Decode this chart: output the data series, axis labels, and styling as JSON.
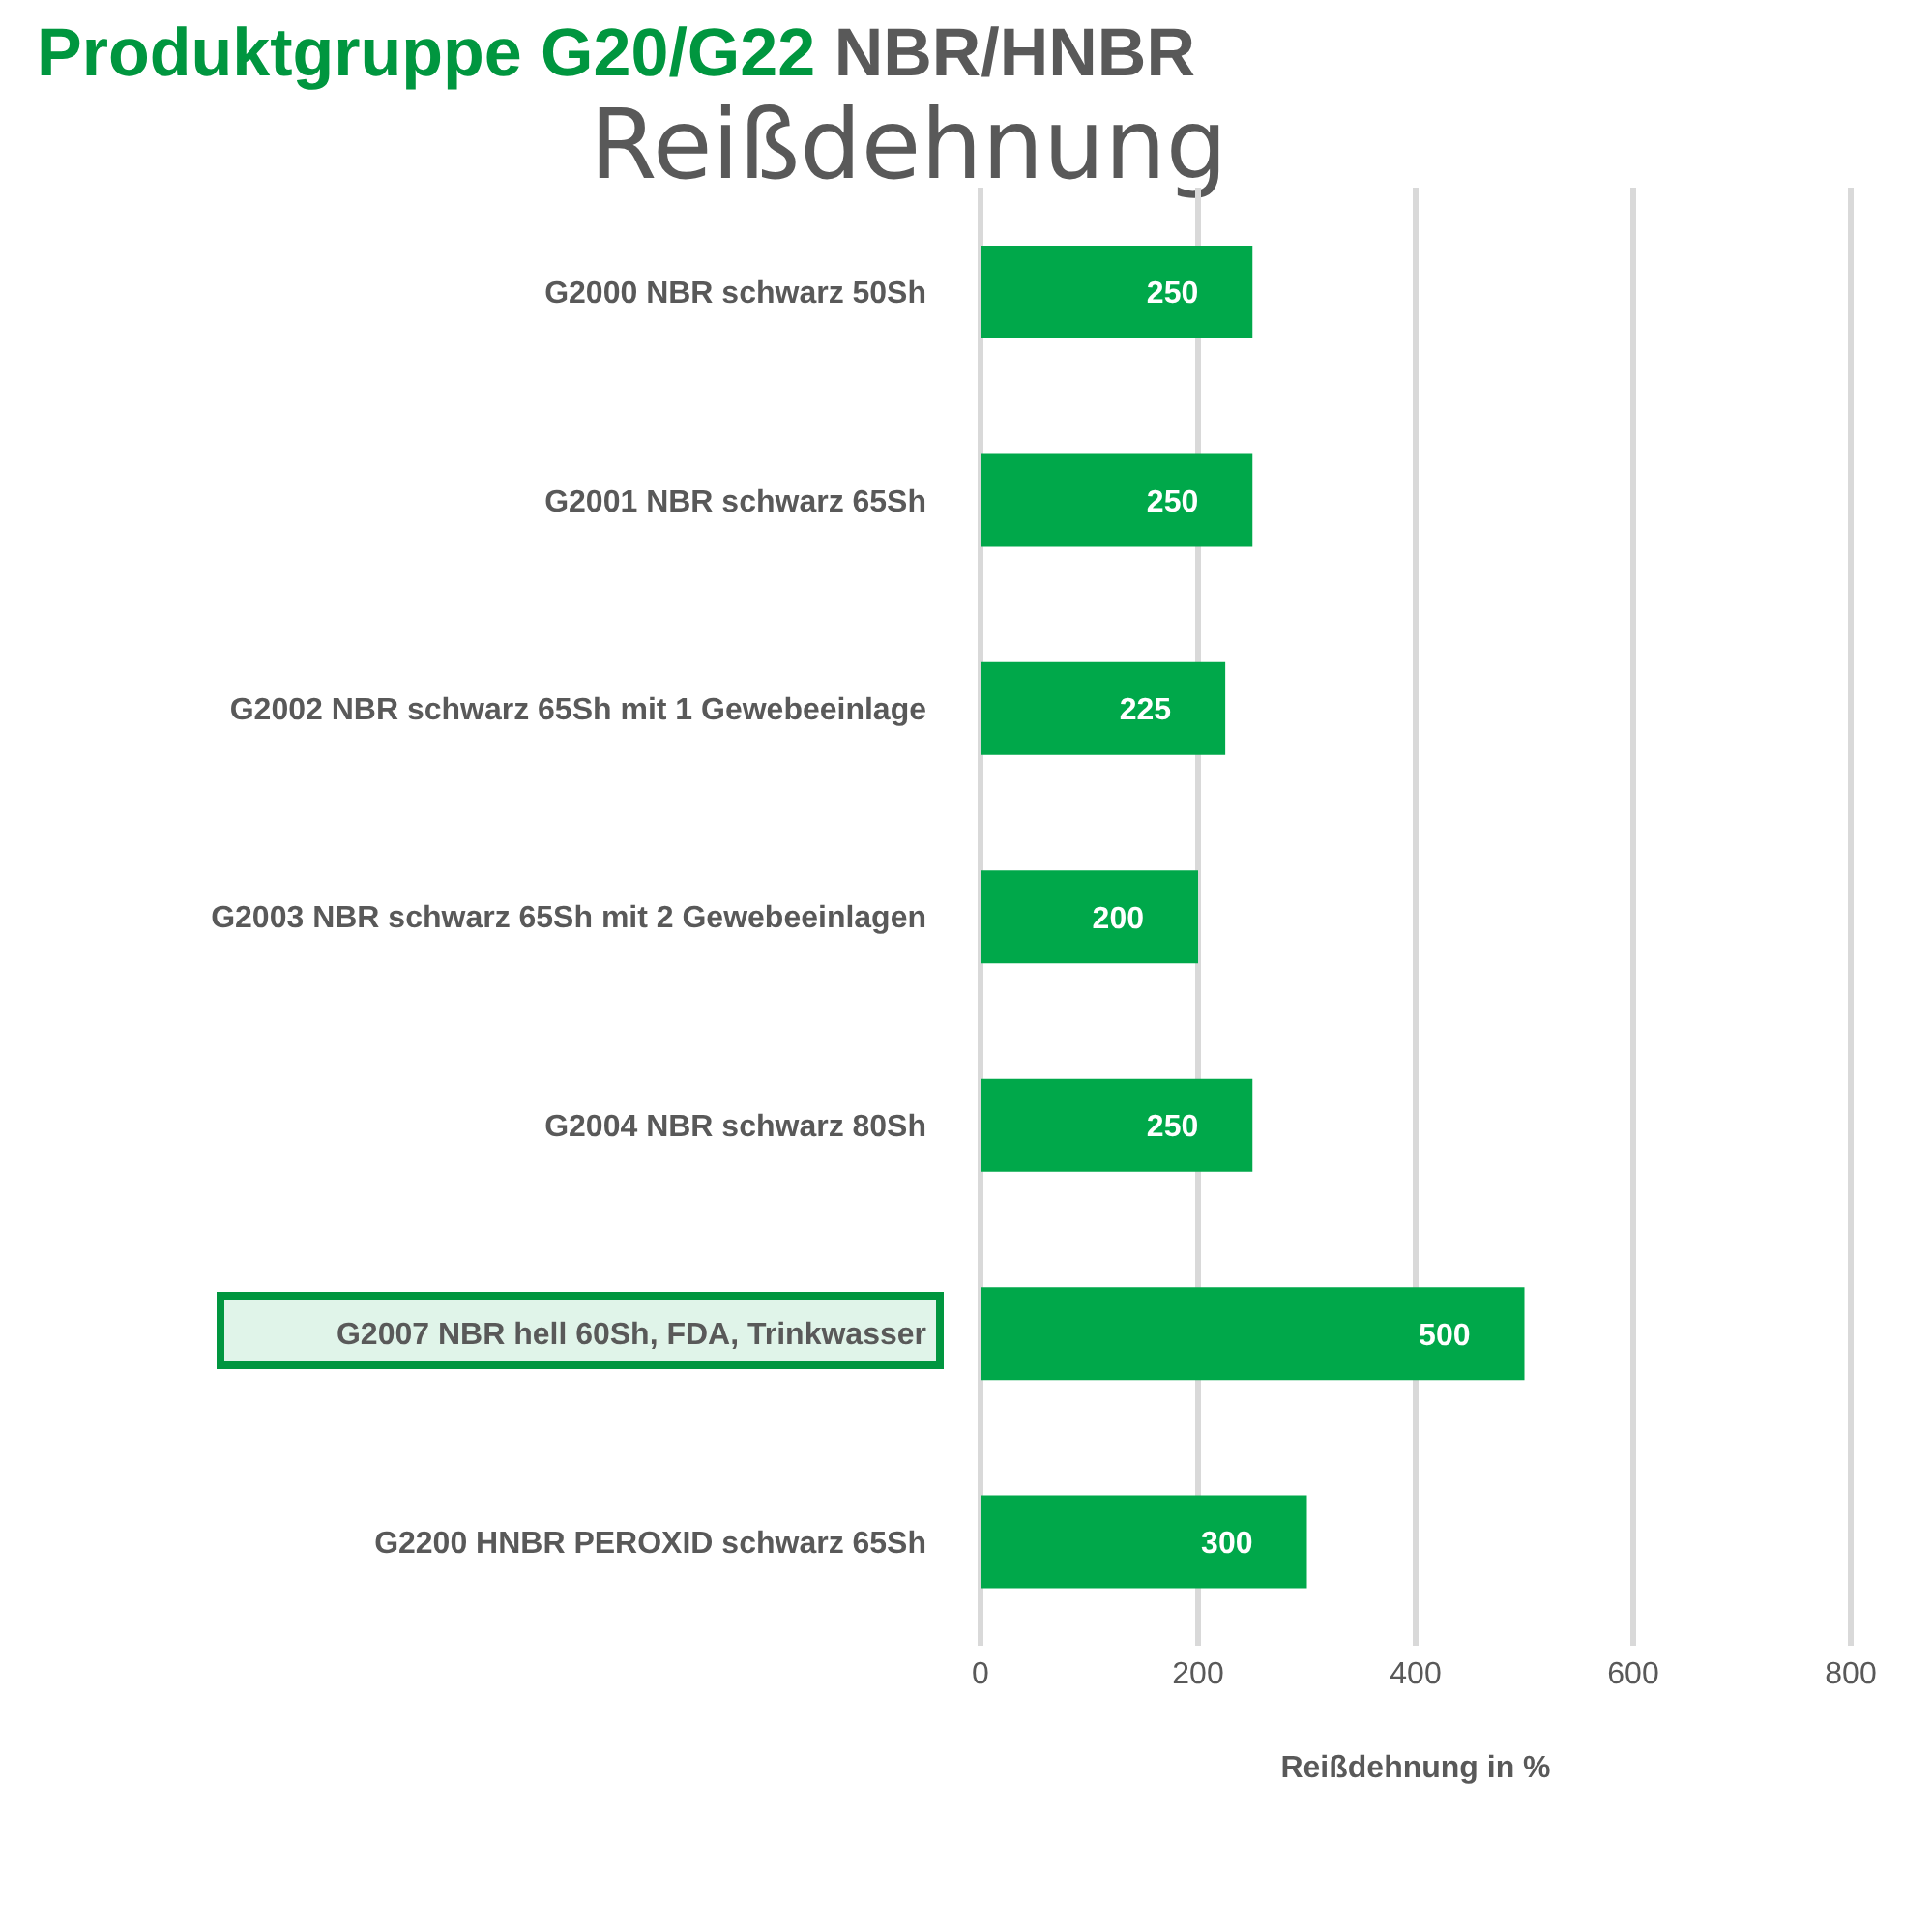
{
  "chart_data": {
    "type": "bar",
    "orientation": "horizontal",
    "title": "Produktgruppe G20/G22 NBR/HNBR",
    "subtitle": "Reißdehnung",
    "xlabel": "Reißdehnung in %",
    "categories": [
      "G2000 NBR schwarz 50Sh",
      "G2001 NBR schwarz 65Sh",
      "G2002 NBR schwarz 65Sh mit 1 Gewebeeinlage",
      "G2003 NBR schwarz 65Sh mit 2 Gewebeeinlagen",
      "G2004 NBR schwarz 80Sh",
      "G2007 NBR hell 60Sh, FDA, Trinkwasser",
      "G2200 HNBR PEROXID schwarz 65Sh"
    ],
    "values": [
      250,
      250,
      225,
      200,
      250,
      500,
      300
    ],
    "color": "#00a84a",
    "xlim": [
      0,
      800
    ],
    "xticks": [
      0,
      200,
      400,
      600,
      800
    ],
    "grid": "x",
    "data_labels": true
  }
}
